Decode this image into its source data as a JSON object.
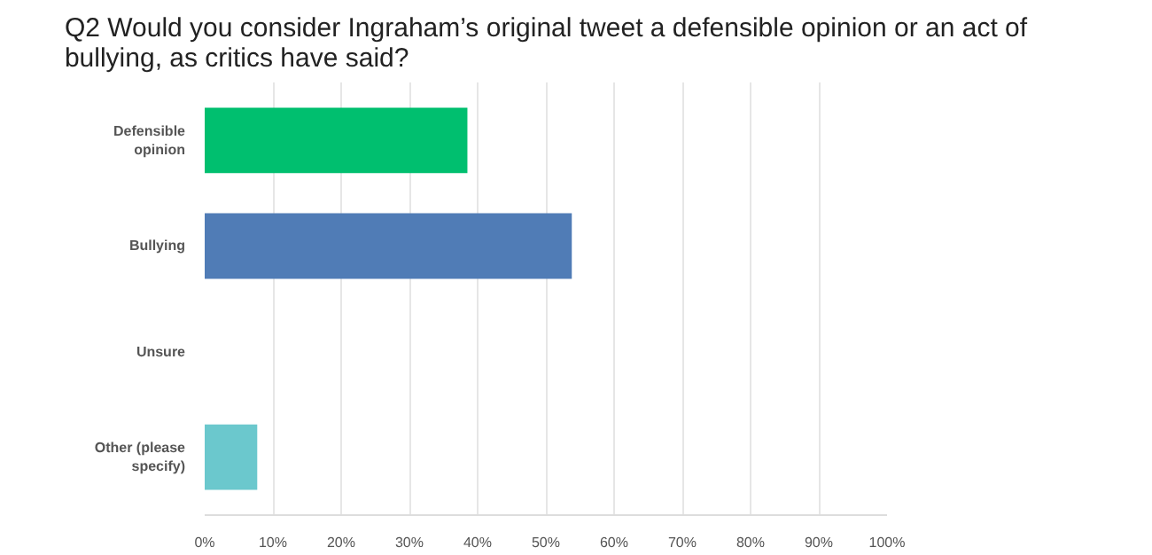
{
  "chart_data": {
    "type": "bar",
    "orientation": "horizontal",
    "title": "Q2 Would you consider Ingraham’s original tweet a defensible opinion or an act of bullying, as critics have said?",
    "categories": [
      "Defensible opinion",
      "Bullying",
      "Unsure",
      "Other (please specify)"
    ],
    "values": [
      38.5,
      53.8,
      0,
      7.7
    ],
    "colors": [
      "#00bf6f",
      "#507cb6",
      "#4a9fd8",
      "#6bc8cd"
    ],
    "xlim": [
      0,
      100
    ],
    "xticks": [
      {
        "value": 0,
        "label": "0%"
      },
      {
        "value": 10,
        "label": "10%"
      },
      {
        "value": 20,
        "label": "20%"
      },
      {
        "value": 30,
        "label": "30%"
      },
      {
        "value": 40,
        "label": "40%"
      },
      {
        "value": 50,
        "label": "50%"
      },
      {
        "value": 60,
        "label": "60%"
      },
      {
        "value": 70,
        "label": "70%"
      },
      {
        "value": 80,
        "label": "80%"
      },
      {
        "value": 90,
        "label": "90%"
      },
      {
        "value": 100,
        "label": "100%"
      }
    ],
    "grid": "x"
  }
}
